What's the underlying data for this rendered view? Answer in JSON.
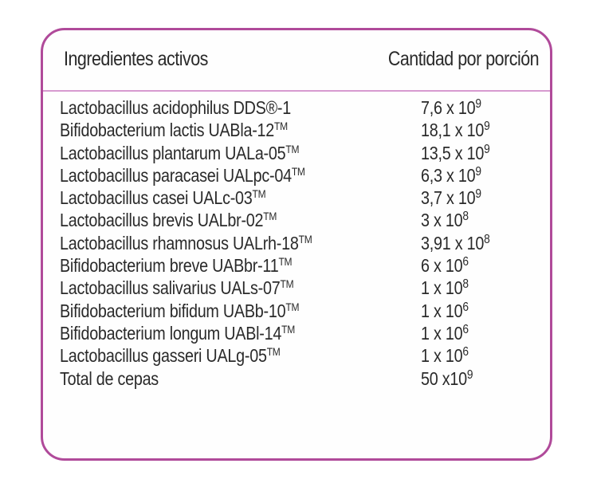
{
  "table": {
    "headers": {
      "ingredient": "Ingredientes activos",
      "amount": "Cantidad por porción"
    },
    "rows": [
      {
        "name": "Lactobacillus acidophilus DDS®-1",
        "mark": "",
        "mantissa": "7,6 x 10",
        "exponent": "9"
      },
      {
        "name": "Bifidobacterium lactis UABla-12",
        "mark": "TM",
        "mantissa": "18,1 x 10",
        "exponent": "9"
      },
      {
        "name": "Lactobacillus plantarum UALa-05",
        "mark": "TM",
        "mantissa": "13,5 x 10",
        "exponent": "9"
      },
      {
        "name": "Lactobacillus paracasei UALpc-04",
        "mark": "TM",
        "mantissa": "6,3 x 10",
        "exponent": "9"
      },
      {
        "name": "Lactobacillus casei UALc-03",
        "mark": "TM",
        "mantissa": "3,7 x 10",
        "exponent": "9"
      },
      {
        "name": "Lactobacillus brevis UALbr-02",
        "mark": "TM",
        "mantissa": "3 x 10",
        "exponent": "8"
      },
      {
        "name": "Lactobacillus rhamnosus UALrh-18",
        "mark": "TM",
        "mantissa": "3,91 x 10",
        "exponent": "8"
      },
      {
        "name": "Bifidobacterium breve UABbr-11",
        "mark": "TM",
        "mantissa": "6 x 10",
        "exponent": "6"
      },
      {
        "name": "Lactobacillus salivarius UALs-07",
        "mark": "TM",
        "mantissa": "1 x 10",
        "exponent": "8"
      },
      {
        "name": "Bifidobacterium bifidum UABb-10",
        "mark": "TM",
        "mantissa": "1 x 10",
        "exponent": "6"
      },
      {
        "name": "Bifidobacterium longum UABl-14",
        "mark": "TM",
        "mantissa": "1 x 10",
        "exponent": "6"
      },
      {
        "name": "Lactobacillus gasseri UALg-05",
        "mark": "TM",
        "mantissa": "1 x 10",
        "exponent": "6"
      },
      {
        "name": "Total de cepas",
        "mark": "",
        "mantissa": "50 x10",
        "exponent": "9"
      }
    ]
  },
  "colors": {
    "border": "#b04a9a",
    "header_divider": "#d79ad0",
    "text": "#2a2a2a"
  }
}
